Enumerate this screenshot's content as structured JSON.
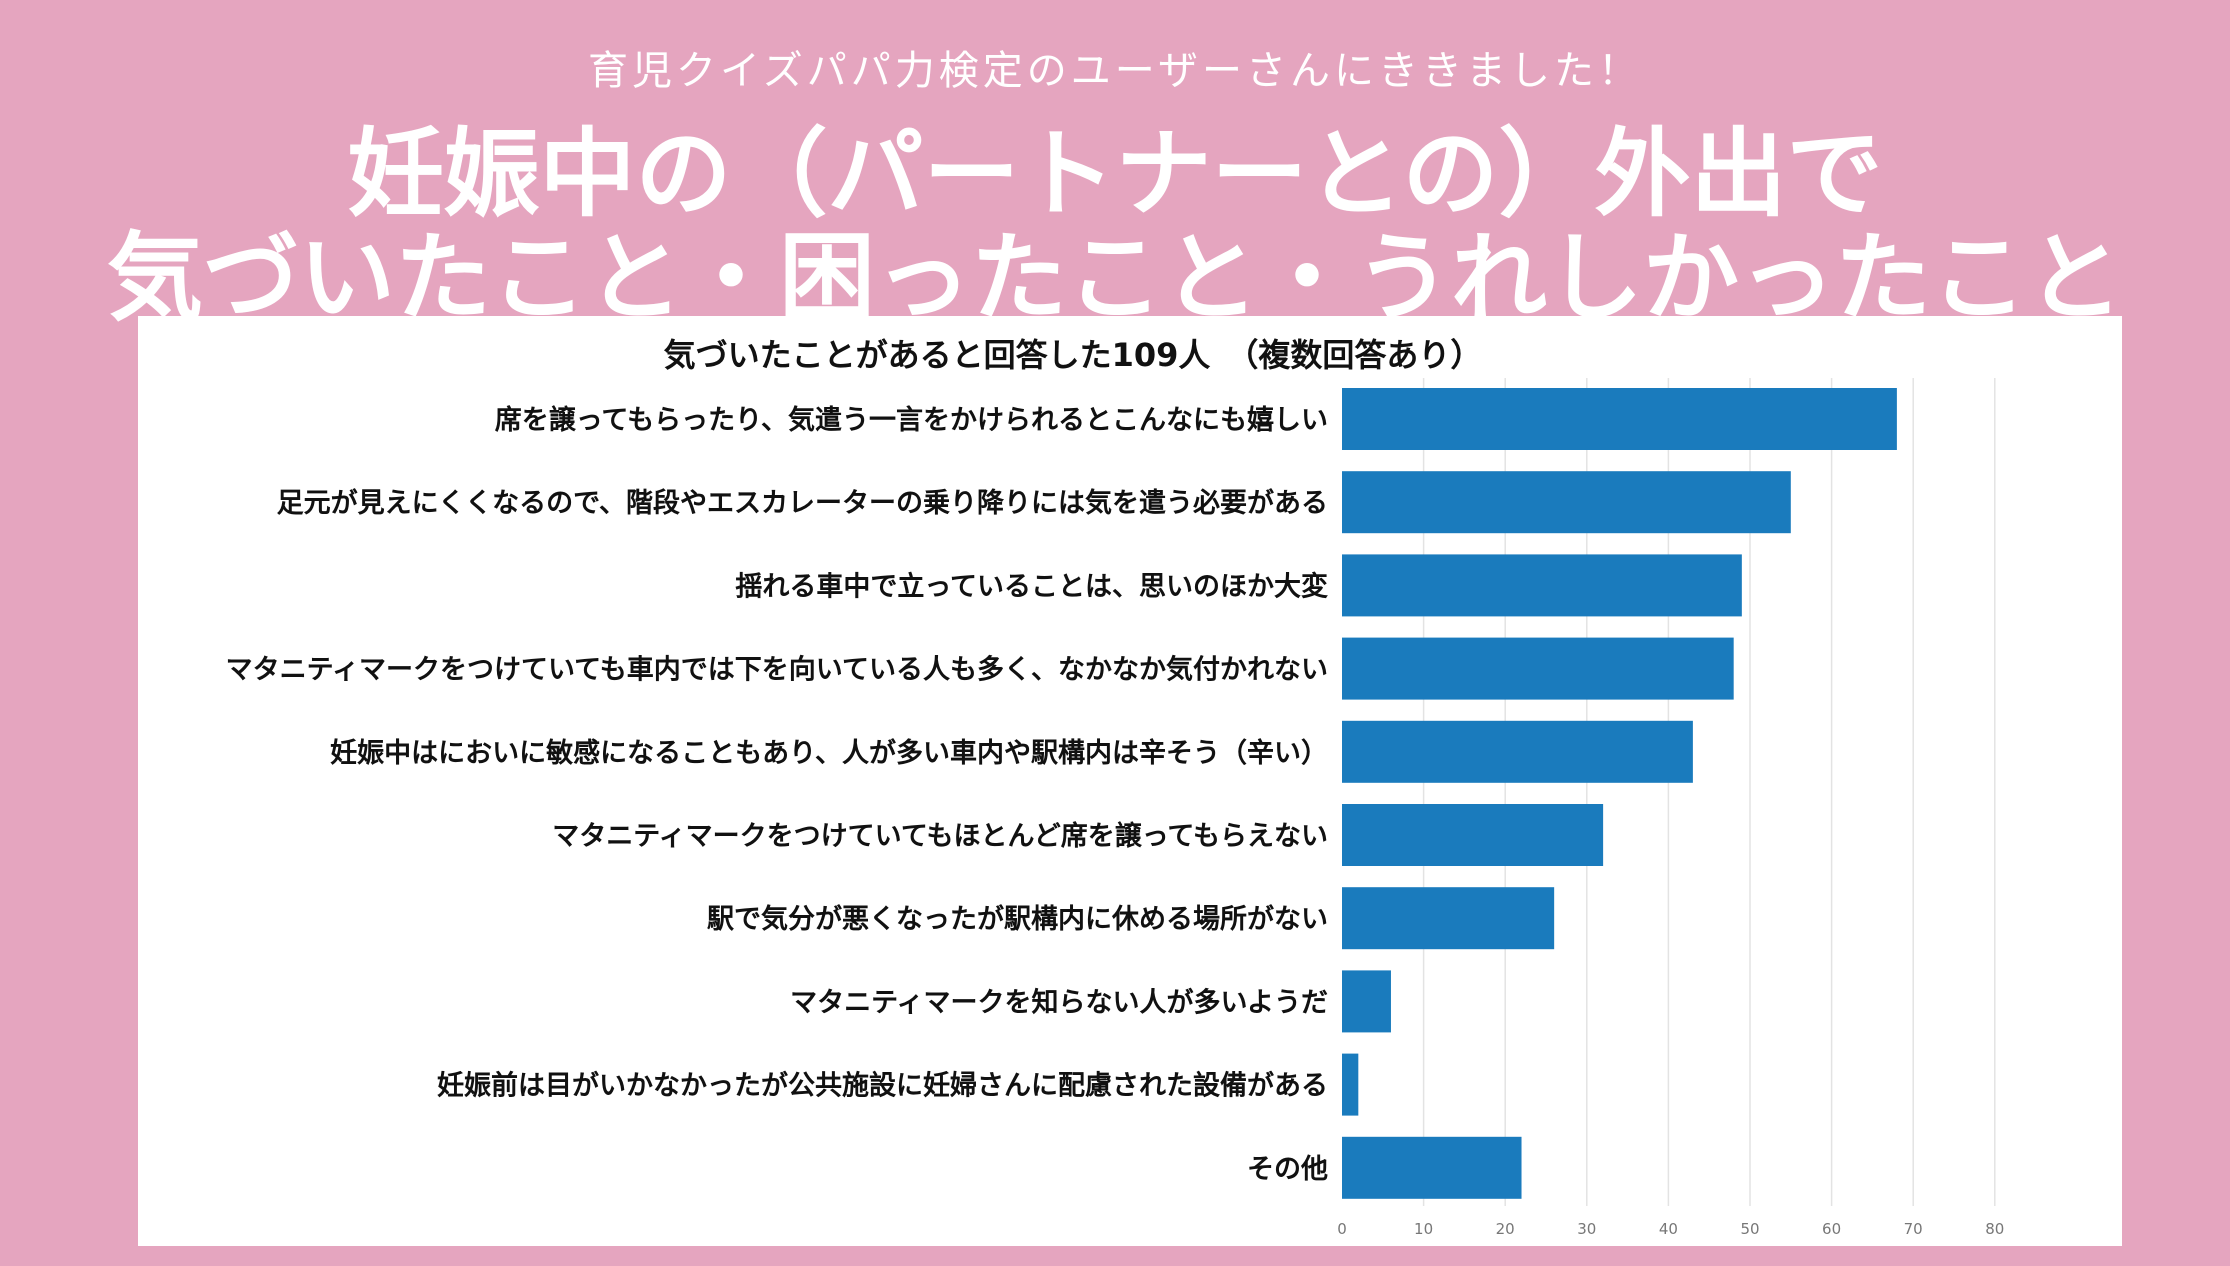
{
  "header": {
    "subtitle": "育児クイズパパ力検定のユーザーさんにききました！",
    "title_line1": "妊娠中の（パートナーとの）外出で",
    "title_line2": "気づいたこと・困ったこと・うれしかったこと"
  },
  "colors": {
    "background": "#e5a5bf",
    "bar": "#1a7bbd",
    "panel": "#ffffff"
  },
  "chart_data": {
    "type": "bar",
    "orientation": "horizontal",
    "title": "気づいたことがあると回答した109人　（複数回答あり）",
    "categories": [
      "席を譲ってもらったり、気遣う一言をかけられるとこんなにも嬉しい",
      "足元が見えにくくなるので、階段やエスカレーターの乗り降りには気を遣う必要がある",
      "揺れる車中で立っていることは、思いのほか大変",
      "マタニティマークをつけていても車内では下を向いている人も多く、なかなか気付かれない",
      "妊娠中はにおいに敏感になることもあり、人が多い車内や駅構内は辛そう（辛い）",
      "マタニティマークをつけていてもほとんど席を譲ってもらえない",
      "駅で気分が悪くなったが駅構内に休める場所がない",
      "マタニティマークを知らない人が多いようだ",
      "妊娠前は目がいかなかったが公共施設に妊婦さんに配慮された設備がある",
      "その他"
    ],
    "values": [
      68,
      55,
      49,
      48,
      43,
      32,
      26,
      6,
      2,
      22
    ],
    "xlim": [
      0,
      80
    ],
    "xticks": [
      0,
      10,
      20,
      30,
      40,
      50,
      60,
      70,
      80
    ],
    "grid": true
  }
}
